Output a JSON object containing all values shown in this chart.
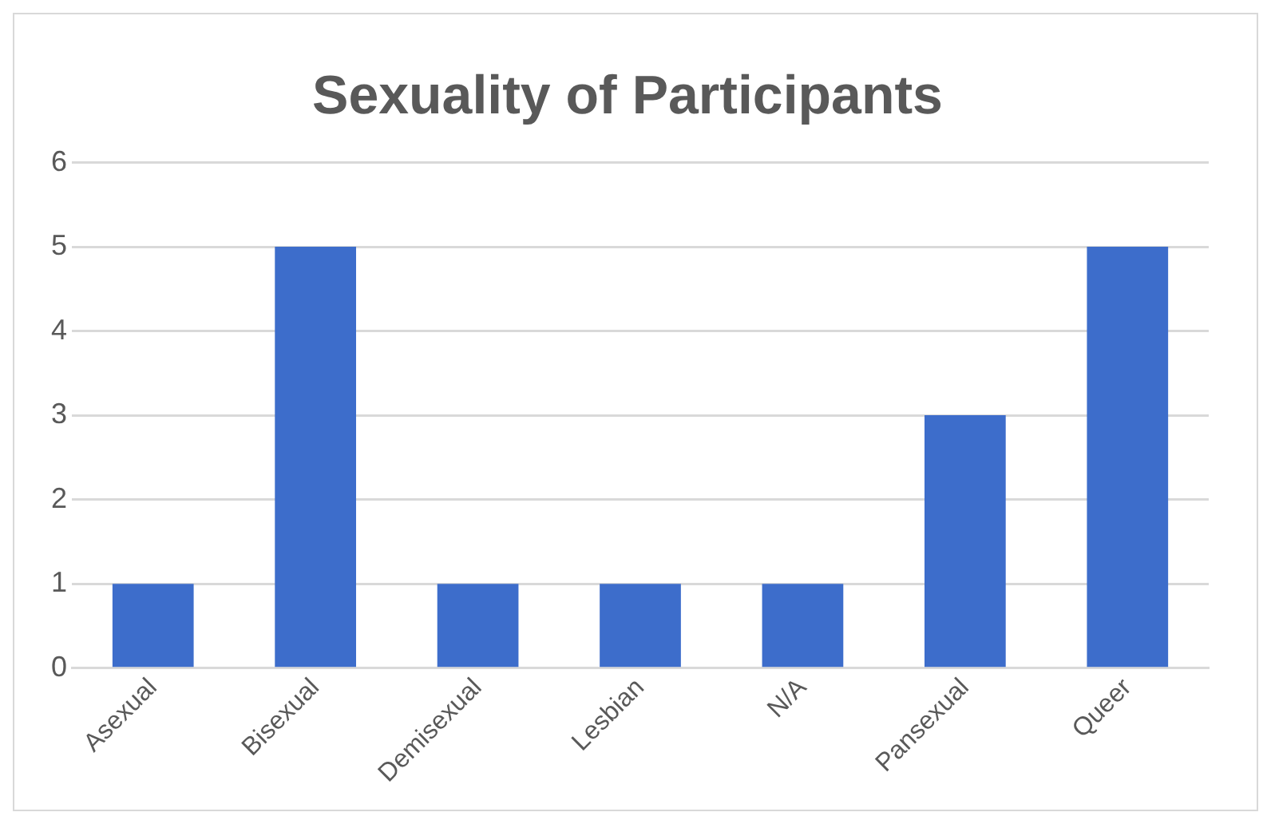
{
  "chart_data": {
    "type": "bar",
    "title": "Sexuality of Participants",
    "categories": [
      "Asexual",
      "Bisexual",
      "Demisexual",
      "Lesbian",
      "N/A",
      "Pansexual",
      "Queer"
    ],
    "values": [
      1,
      5,
      1,
      1,
      1,
      3,
      5
    ],
    "color": "#3d6dcb",
    "ylim": [
      0,
      6
    ],
    "yticks": [
      0,
      1,
      2,
      3,
      4,
      5,
      6
    ],
    "grid": "y",
    "legend": false
  }
}
